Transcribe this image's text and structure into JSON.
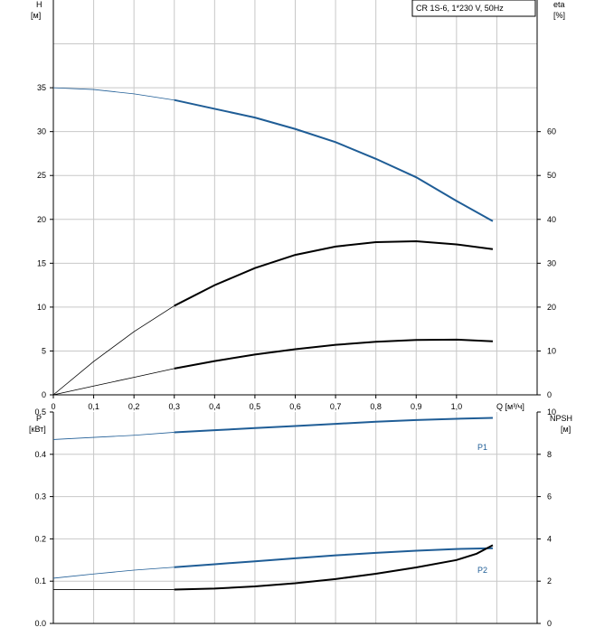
{
  "chart_data": [
    {
      "type": "line",
      "legend_box": "CR 1S-6, 1*230 V, 50Hz",
      "left_axis": {
        "label": "H",
        "unit": "[м]",
        "ticks": [
          "0",
          "5",
          "10",
          "15",
          "20",
          "25",
          "30",
          "35"
        ],
        "range": [
          0,
          45
        ]
      },
      "right_axis": {
        "label": "eta",
        "unit": "[%]",
        "ticks": [
          "0",
          "10",
          "20",
          "30",
          "40",
          "50",
          "60"
        ],
        "range": [
          0,
          90
        ]
      },
      "x_axis": {
        "label": "Q [м³/ч]",
        "ticks": [
          "0",
          "0,1",
          "0,2",
          "0,3",
          "0,4",
          "0,5",
          "0,6",
          "0,7",
          "0,8",
          "0,9",
          "1,0"
        ],
        "range": [
          0,
          1.2
        ]
      },
      "grid": true,
      "series": [
        {
          "axis": "left",
          "color": "#1f5d96",
          "points": [
            [
              0,
              35
            ],
            [
              0.1,
              34.8
            ],
            [
              0.2,
              34.3
            ],
            [
              0.3,
              33.6
            ],
            [
              0.4,
              32.6
            ],
            [
              0.5,
              31.6
            ],
            [
              0.6,
              30.3
            ],
            [
              0.7,
              28.8
            ],
            [
              0.8,
              26.9
            ],
            [
              0.9,
              24.8
            ],
            [
              1.0,
              22.1
            ],
            [
              1.09,
              19.8
            ]
          ],
          "thin_until": 0.3
        },
        {
          "axis": "right",
          "color": "#000000",
          "points": [
            [
              0,
              0
            ],
            [
              0.1,
              7.6
            ],
            [
              0.2,
              14.4
            ],
            [
              0.3,
              20.3
            ],
            [
              0.4,
              25
            ],
            [
              0.5,
              28.9
            ],
            [
              0.6,
              31.9
            ],
            [
              0.7,
              33.8
            ],
            [
              0.8,
              34.8
            ],
            [
              0.9,
              35
            ],
            [
              1.0,
              34.3
            ],
            [
              1.09,
              33.2
            ]
          ],
          "thin_until": 0.3
        },
        {
          "axis": "left",
          "color": "#000000",
          "points": [
            [
              0,
              0
            ],
            [
              0.1,
              1
            ],
            [
              0.2,
              2
            ],
            [
              0.3,
              3
            ],
            [
              0.4,
              3.85
            ],
            [
              0.5,
              4.6
            ],
            [
              0.6,
              5.2
            ],
            [
              0.7,
              5.7
            ],
            [
              0.8,
              6.05
            ],
            [
              0.9,
              6.25
            ],
            [
              1.0,
              6.3
            ],
            [
              1.09,
              6.1
            ]
          ],
          "thin_until": 0.3
        }
      ]
    },
    {
      "type": "line",
      "left_axis": {
        "label": "P",
        "unit": "[кВт]",
        "ticks": [
          "0.0",
          "0.1",
          "0.2",
          "0.3",
          "0.4",
          "0.5"
        ],
        "range": [
          0,
          0.5
        ]
      },
      "right_axis": {
        "label": "NPSH",
        "unit": "[м]",
        "ticks": [
          "0",
          "2",
          "4",
          "6",
          "8",
          "10"
        ],
        "range": [
          0,
          10
        ]
      },
      "x_axis": {
        "range": [
          0,
          1.2
        ]
      },
      "grid": true,
      "series": [
        {
          "name": "P1",
          "axis": "left",
          "color": "#1f5d96",
          "points": [
            [
              0,
              0.435
            ],
            [
              0.1,
              0.44
            ],
            [
              0.2,
              0.445
            ],
            [
              0.3,
              0.452
            ],
            [
              0.4,
              0.457
            ],
            [
              0.5,
              0.462
            ],
            [
              0.6,
              0.467
            ],
            [
              0.7,
              0.472
            ],
            [
              0.8,
              0.477
            ],
            [
              0.9,
              0.481
            ],
            [
              1.0,
              0.484
            ],
            [
              1.09,
              0.486
            ]
          ],
          "thin_until": 0.3
        },
        {
          "name": "P2",
          "axis": "left",
          "color": "#1f5d96",
          "points": [
            [
              0,
              0.107
            ],
            [
              0.1,
              0.117
            ],
            [
              0.2,
              0.126
            ],
            [
              0.3,
              0.133
            ],
            [
              0.4,
              0.14
            ],
            [
              0.5,
              0.147
            ],
            [
              0.6,
              0.154
            ],
            [
              0.7,
              0.161
            ],
            [
              0.8,
              0.167
            ],
            [
              0.9,
              0.172
            ],
            [
              1.0,
              0.176
            ],
            [
              1.09,
              0.178
            ]
          ],
          "thin_until": 0.3
        },
        {
          "axis": "right",
          "color": "#000000",
          "points": [
            [
              0,
              1.6
            ],
            [
              0.1,
              1.6
            ],
            [
              0.2,
              1.6
            ],
            [
              0.3,
              1.6
            ],
            [
              0.4,
              1.65
            ],
            [
              0.5,
              1.75
            ],
            [
              0.6,
              1.9
            ],
            [
              0.7,
              2.1
            ],
            [
              0.8,
              2.35
            ],
            [
              0.9,
              2.65
            ],
            [
              1.0,
              3.0
            ],
            [
              1.05,
              3.3
            ],
            [
              1.09,
              3.7
            ]
          ],
          "thin_until": 0.3
        }
      ]
    }
  ]
}
